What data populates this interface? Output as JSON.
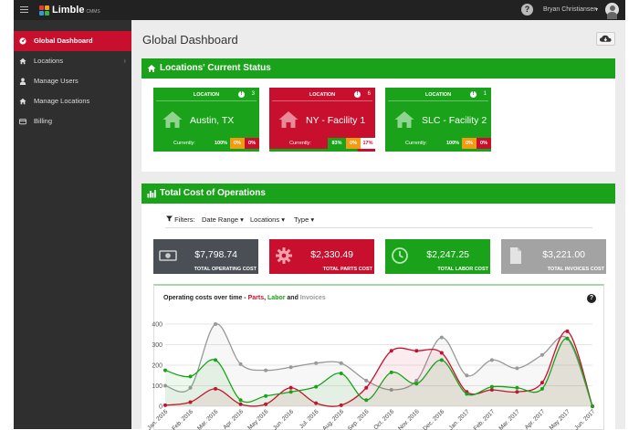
{
  "topbar": {
    "logo_text": "Limble",
    "logo_sub": "CMMS",
    "help_symbol": "?",
    "user_name": "Bryan Christiansen",
    "caret": "▾"
  },
  "sidebar": {
    "items": [
      {
        "label": "Global Dashboard",
        "icon": "dashboard-icon",
        "active": true
      },
      {
        "label": "Locations",
        "icon": "home-icon",
        "chevron": "›"
      },
      {
        "label": "Manage Users",
        "icon": "user-icon"
      },
      {
        "label": "Manage Locations",
        "icon": "home-icon"
      },
      {
        "label": "Billing",
        "icon": "credit-card-icon"
      }
    ]
  },
  "main": {
    "page_title": "Global Dashboard",
    "status_panel_title": "Locations' Current Status",
    "locations": [
      {
        "label": "LOCATION",
        "count": "3",
        "name": "Austin, TX",
        "current_label": "Currently:",
        "pcts": [
          "100%",
          "0%",
          "0%"
        ],
        "color": "#1aa31a"
      },
      {
        "label": "LOCATION",
        "count": "6",
        "name": "NY - Facility 1",
        "current_label": "Currently:",
        "pcts": [
          "83%",
          "0%",
          "17%"
        ],
        "color": "#c8102e"
      },
      {
        "label": "LOCATION",
        "count": "1",
        "name": "SLC - Facility 2",
        "current_label": "Currently:",
        "pcts": [
          "100%",
          "0%",
          "0%"
        ],
        "color": "#1aa31a"
      }
    ],
    "cost_panel_title": "Total Cost of Operations",
    "filters": {
      "label": "Filters:",
      "items": [
        "Date Range",
        "Locations",
        "Type"
      ],
      "caret": "▾"
    },
    "costs": [
      {
        "value": "$7,798.74",
        "label": "TOTAL OPERATING COST",
        "color": "#4a4f55",
        "icon": "money-icon"
      },
      {
        "value": "$2,330.49",
        "label": "TOTAL PARTS COST",
        "color": "#c8102e",
        "icon": "gear-icon"
      },
      {
        "value": "$2,247.25",
        "label": "TOTAL LABOR COST",
        "color": "#1aa31a",
        "icon": "clock-icon"
      },
      {
        "value": "$3,221.00",
        "label": "TOTAL INVOICES COST",
        "color": "#a3a3a3",
        "icon": "file-icon"
      }
    ],
    "chart_title": {
      "prefix": "Operating costs over time - ",
      "parts": "Parts",
      "sep1": ", ",
      "labor": "Labor",
      "sep2": " and ",
      "invoices": "Invoices"
    },
    "chart_help_symbol": "?"
  },
  "chart_data": {
    "type": "line",
    "title": "Operating costs over time - Parts, Labor and Invoices",
    "categories": [
      "Jan. 2016",
      "Feb. 2016",
      "Mar. 2016",
      "Apr. 2016",
      "May 2016",
      "Jun. 2016",
      "Jul. 2016",
      "Aug. 2016",
      "Sep. 2016",
      "Oct. 2016",
      "Nov. 2016",
      "Dec. 2016",
      "Jan. 2017",
      "Feb. 2017",
      "Mar. 2017",
      "Apr. 2017",
      "May 2017",
      "Jun. 2017"
    ],
    "ylim": [
      0,
      400
    ],
    "yticks": [
      0,
      100,
      200,
      300,
      400
    ],
    "series": [
      {
        "name": "Parts",
        "color": "#c8102e",
        "values": [
          5,
          20,
          85,
          10,
          10,
          90,
          15,
          5,
          90,
          270,
          270,
          260,
          70,
          80,
          70,
          115,
          365,
          0
        ]
      },
      {
        "name": "Labor",
        "color": "#1aa31a",
        "values": [
          175,
          145,
          225,
          30,
          50,
          70,
          95,
          160,
          30,
          165,
          110,
          225,
          60,
          95,
          90,
          85,
          330,
          0
        ]
      },
      {
        "name": "Invoices",
        "color": "#999999",
        "values": [
          100,
          90,
          400,
          205,
          175,
          190,
          210,
          210,
          125,
          80,
          125,
          335,
          150,
          225,
          185,
          250,
          330,
          0
        ]
      }
    ],
    "grid": true,
    "legend": "none"
  }
}
